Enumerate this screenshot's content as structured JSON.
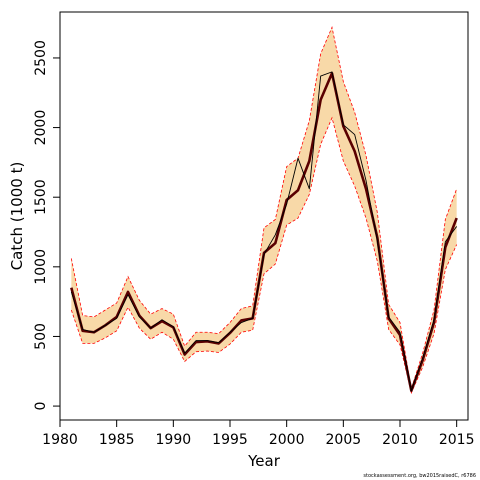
{
  "chart_data": {
    "type": "line",
    "title": "",
    "xlabel": "Year",
    "ylabel": "Catch (1000 t)",
    "footnote": "stockassessment.org, bw2015raisedC, r6786",
    "xlim": [
      1980,
      2016
    ],
    "ylim": [
      -100,
      2830
    ],
    "x_ticks": [
      1980,
      1985,
      1990,
      1995,
      2000,
      2005,
      2010,
      2015
    ],
    "y_ticks": [
      0,
      500,
      1000,
      1500,
      2000,
      2500
    ],
    "grid": false,
    "colors": {
      "band_fill": "#f8d9a8",
      "band_edge": "#ff0000",
      "estimate": "#5a0000",
      "observed": "#000000"
    },
    "series": [
      {
        "role": "estimate",
        "x": [
          1981,
          1982,
          1983,
          1984,
          1985,
          1986,
          1987,
          1988,
          1989,
          1990,
          1991,
          1992,
          1993,
          1994,
          1995,
          1996,
          1997,
          1998,
          1999,
          2000,
          2001,
          2002,
          2003,
          2004,
          2005,
          2006,
          2007,
          2008,
          2009,
          2010,
          2011,
          2012,
          2013,
          2014,
          2015
        ],
        "y": [
          850,
          540,
          530,
          580,
          640,
          820,
          650,
          560,
          610,
          565,
          370,
          460,
          465,
          450,
          525,
          615,
          630,
          1100,
          1170,
          1480,
          1550,
          1760,
          2200,
          2390,
          2010,
          1830,
          1560,
          1210,
          630,
          510,
          110,
          330,
          600,
          1140,
          1350
        ]
      },
      {
        "role": "upper",
        "x": [
          1981,
          1982,
          1983,
          1984,
          1985,
          1986,
          1987,
          1988,
          1989,
          1990,
          1991,
          1992,
          1993,
          1994,
          1995,
          1996,
          1997,
          1998,
          1999,
          2000,
          2001,
          2002,
          2003,
          2004,
          2005,
          2006,
          2007,
          2008,
          2009,
          2010,
          2011,
          2012,
          2013,
          2014,
          2015
        ],
        "y": [
          1060,
          650,
          640,
          690,
          740,
          930,
          760,
          660,
          700,
          660,
          430,
          530,
          530,
          520,
          600,
          700,
          720,
          1280,
          1340,
          1720,
          1780,
          2050,
          2530,
          2720,
          2330,
          2110,
          1800,
          1390,
          730,
          600,
          125,
          380,
          690,
          1340,
          1560
        ]
      },
      {
        "role": "lower",
        "x": [
          1981,
          1982,
          1983,
          1984,
          1985,
          1986,
          1987,
          1988,
          1989,
          1990,
          1991,
          1992,
          1993,
          1994,
          1995,
          1996,
          1997,
          1998,
          1999,
          2000,
          2001,
          2002,
          2003,
          2004,
          2005,
          2006,
          2007,
          2008,
          2009,
          2010,
          2011,
          2012,
          2013,
          2014,
          2015
        ],
        "y": [
          690,
          450,
          450,
          490,
          540,
          710,
          560,
          480,
          530,
          480,
          320,
          390,
          395,
          385,
          445,
          530,
          545,
          950,
          1020,
          1300,
          1350,
          1520,
          1880,
          2070,
          1760,
          1580,
          1350,
          1040,
          550,
          440,
          95,
          280,
          520,
          980,
          1160
        ]
      },
      {
        "role": "observed",
        "x": [
          1981,
          1982,
          1983,
          1984,
          1985,
          1986,
          1987,
          1988,
          1989,
          1990,
          1991,
          1992,
          1993,
          1994,
          1995,
          1996,
          1997,
          1998,
          1999,
          2000,
          2001,
          2002,
          2003,
          2004,
          2005,
          2006,
          2007,
          2008,
          2009,
          2010,
          2011,
          2012,
          2013,
          2014,
          2015
        ],
        "y": [
          820,
          550,
          530,
          580,
          630,
          800,
          640,
          560,
          620,
          570,
          380,
          470,
          470,
          455,
          530,
          600,
          630,
          1090,
          1230,
          1450,
          1780,
          1560,
          2370,
          2400,
          2020,
          1950,
          1620,
          1190,
          640,
          530,
          110,
          345,
          620,
          1180,
          1290
        ]
      }
    ]
  }
}
